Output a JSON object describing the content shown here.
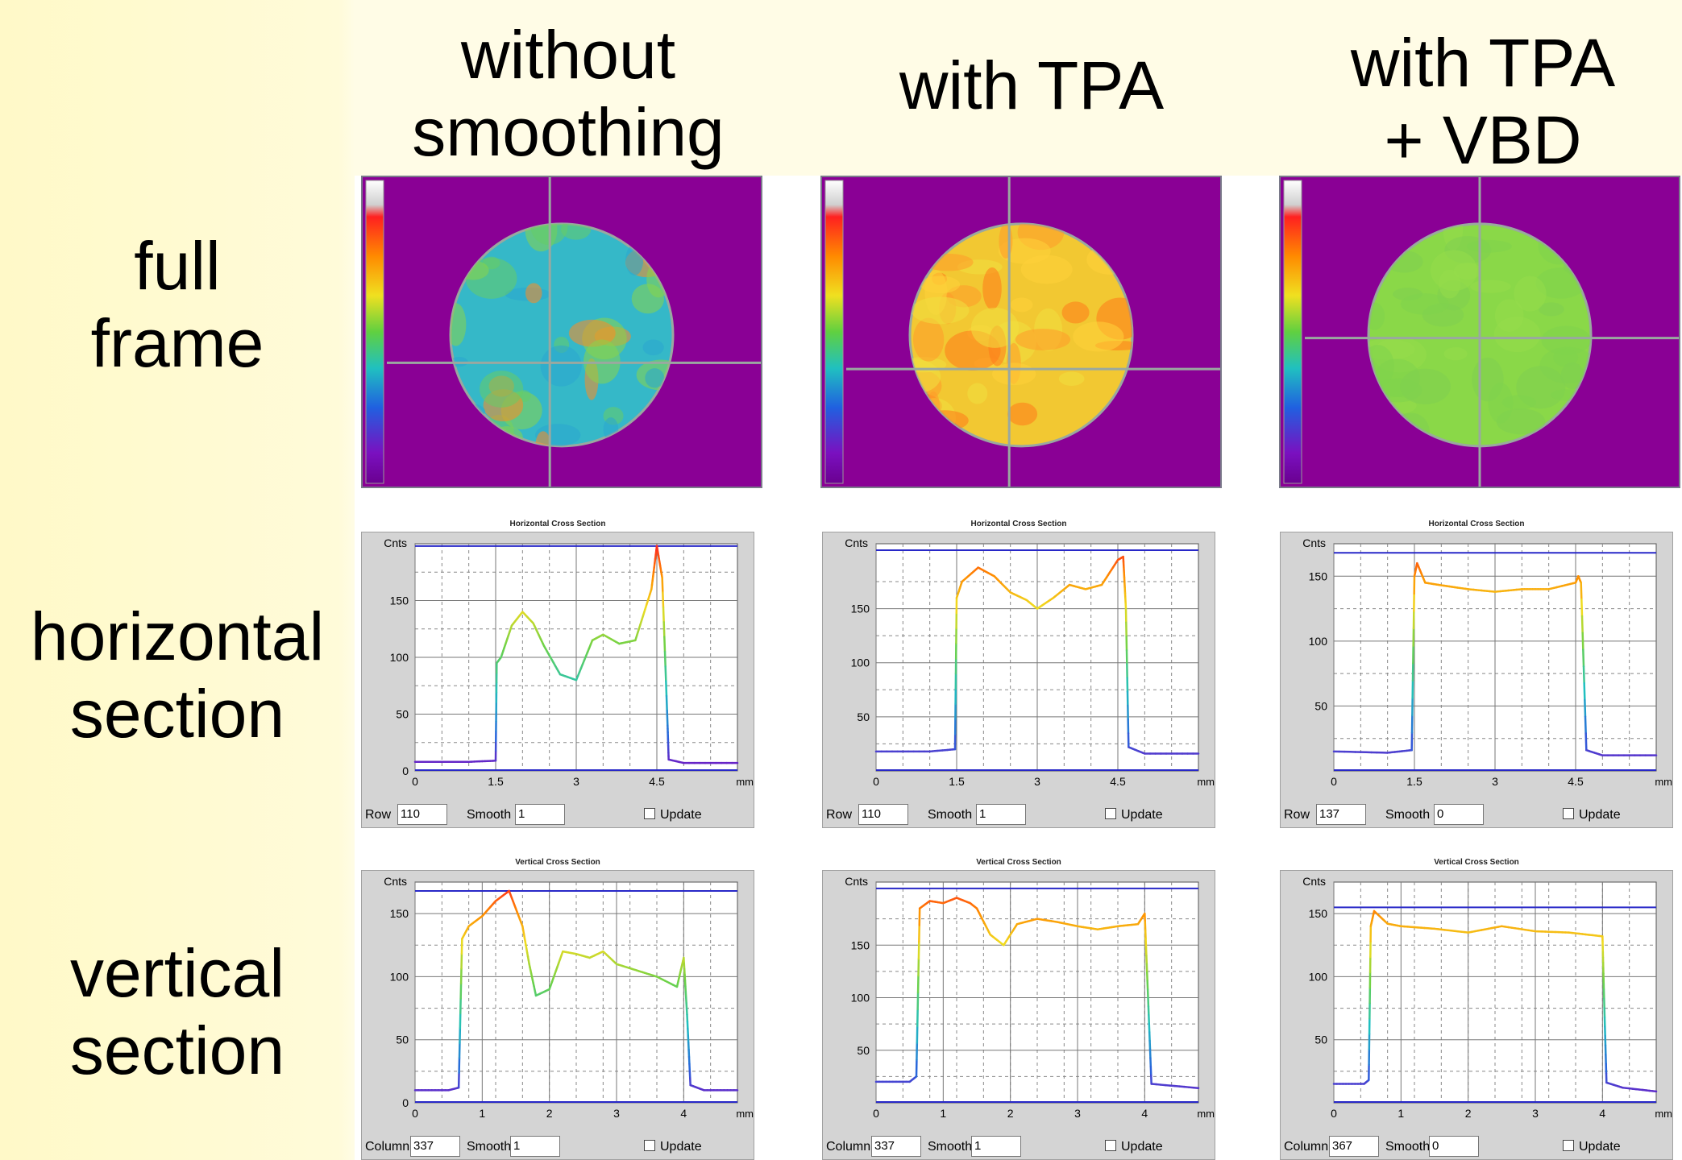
{
  "columns": [
    {
      "title": "without\nsmoothing"
    },
    {
      "title": "with TPA"
    },
    {
      "title": "with TPA\n+ VBD"
    }
  ],
  "rows": [
    {
      "title": "full\nframe"
    },
    {
      "title": "horizontal\nsection"
    },
    {
      "title": "vertical\nsection"
    }
  ],
  "frames": [
    {
      "disc_color": "#35b8c8",
      "patch_colors": [
        "#66cc66",
        "#88d44a",
        "#2aa6d0",
        "#ff8a20"
      ],
      "crosshair": [
        0.47,
        0.6
      ]
    },
    {
      "disc_color": "#f2c832",
      "patch_colors": [
        "#ff9a2a",
        "#ffd23a",
        "#f0e040",
        "#ff7a1a"
      ],
      "crosshair": [
        0.47,
        0.62
      ]
    },
    {
      "disc_color": "#8ad848",
      "patch_colors": [
        "#7fd44c",
        "#96dc4a",
        "#80d050"
      ],
      "crosshair": [
        0.5,
        0.52
      ]
    }
  ],
  "chart_data": [
    {
      "type": "line",
      "title": "Horizontal Cross Section",
      "ylabel": "Cnts",
      "xlabel": "mm",
      "xticks": [
        "0",
        "1.5",
        "3",
        "4.5"
      ],
      "xlim": [
        0,
        6
      ],
      "ylim": [
        0,
        200
      ],
      "yticks": [
        0,
        50,
        100,
        150
      ],
      "ref_line": 198,
      "x": [
        0,
        1.0,
        1.5,
        1.52,
        1.6,
        1.8,
        2.0,
        2.2,
        2.4,
        2.7,
        3.0,
        3.3,
        3.5,
        3.8,
        4.1,
        4.4,
        4.5,
        4.6,
        4.7,
        4.72,
        5.0,
        6.0
      ],
      "y": [
        8,
        8,
        9,
        95,
        100,
        128,
        140,
        130,
        110,
        85,
        80,
        115,
        120,
        112,
        115,
        160,
        198,
        170,
        40,
        10,
        7,
        7
      ],
      "controls": {
        "row_label": "Row",
        "row_value": "110",
        "smooth_label": "Smooth",
        "smooth_value": "1",
        "update_label": "Update"
      }
    },
    {
      "type": "line",
      "title": "Horizontal Cross Section",
      "ylabel": "Cnts",
      "xlabel": "mm",
      "xticks": [
        "0",
        "1.5",
        "3",
        "4.5"
      ],
      "xlim": [
        0,
        6
      ],
      "ylim": [
        0,
        210
      ],
      "yticks": [
        50,
        100,
        150
      ],
      "ref_line": 204,
      "x": [
        0,
        1.0,
        1.47,
        1.5,
        1.6,
        1.9,
        2.2,
        2.5,
        2.8,
        3.0,
        3.3,
        3.6,
        3.9,
        4.2,
        4.5,
        4.6,
        4.65,
        4.7,
        5.0,
        6.0
      ],
      "y": [
        18,
        18,
        20,
        160,
        175,
        188,
        180,
        165,
        158,
        150,
        160,
        172,
        168,
        172,
        195,
        198,
        150,
        22,
        16,
        16
      ],
      "controls": {
        "row_label": "Row",
        "row_value": "110",
        "smooth_label": "Smooth",
        "smooth_value": "1",
        "update_label": "Update"
      }
    },
    {
      "type": "line",
      "title": "Horizontal Cross Section",
      "ylabel": "Cnts",
      "xlabel": "mm",
      "xticks": [
        "0",
        "1.5",
        "3",
        "4.5"
      ],
      "xlim": [
        0,
        6
      ],
      "ylim": [
        0,
        175
      ],
      "yticks": [
        50,
        100,
        150
      ],
      "ref_line": 168,
      "x": [
        0,
        1.0,
        1.45,
        1.5,
        1.55,
        1.7,
        2.0,
        2.5,
        3.0,
        3.5,
        4.0,
        4.5,
        4.55,
        4.6,
        4.7,
        5.0,
        6.0
      ],
      "y": [
        15,
        14,
        16,
        150,
        160,
        145,
        143,
        140,
        138,
        140,
        140,
        145,
        150,
        145,
        16,
        12,
        12
      ],
      "controls": {
        "row_label": "Row",
        "row_value": "137",
        "smooth_label": "Smooth",
        "smooth_value": "0",
        "update_label": "Update"
      }
    },
    {
      "type": "line",
      "title": "Vertical Cross Section",
      "ylabel": "Cnts",
      "xlabel": "mm",
      "xticks": [
        "0",
        "1",
        "2",
        "3",
        "4"
      ],
      "xlim": [
        0,
        4.8
      ],
      "ylim": [
        0,
        175
      ],
      "yticks": [
        0,
        50,
        100,
        150
      ],
      "ref_line": 168,
      "x": [
        0,
        0.5,
        0.65,
        0.7,
        0.8,
        1.0,
        1.2,
        1.4,
        1.6,
        1.7,
        1.8,
        2.0,
        2.2,
        2.4,
        2.6,
        2.8,
        3.0,
        3.3,
        3.6,
        3.9,
        4.0,
        4.05,
        4.1,
        4.3,
        4.8
      ],
      "y": [
        10,
        10,
        12,
        130,
        140,
        148,
        160,
        168,
        140,
        110,
        85,
        90,
        120,
        118,
        115,
        120,
        110,
        105,
        100,
        92,
        115,
        70,
        14,
        10,
        10
      ],
      "controls": {
        "row_label": "Column",
        "row_value": "337",
        "smooth_label": "Smooth",
        "smooth_value": "1",
        "update_label": "Update"
      }
    },
    {
      "type": "line",
      "title": "Vertical Cross Section",
      "ylabel": "Cnts",
      "xlabel": "mm",
      "xticks": [
        "0",
        "1",
        "2",
        "3",
        "4"
      ],
      "xlim": [
        0,
        4.8
      ],
      "ylim": [
        0,
        210
      ],
      "yticks": [
        50,
        100,
        150
      ],
      "ref_line": 204,
      "x": [
        0,
        0.5,
        0.6,
        0.65,
        0.8,
        1.0,
        1.2,
        1.4,
        1.5,
        1.7,
        1.9,
        2.1,
        2.4,
        2.7,
        3.0,
        3.3,
        3.6,
        3.9,
        4.0,
        4.05,
        4.1,
        4.8
      ],
      "y": [
        20,
        20,
        25,
        185,
        192,
        190,
        195,
        190,
        185,
        160,
        150,
        170,
        175,
        172,
        168,
        165,
        168,
        170,
        180,
        100,
        18,
        14
      ],
      "controls": {
        "row_label": "Column",
        "row_value": "337",
        "smooth_label": "Smooth",
        "smooth_value": "1",
        "update_label": "Update"
      }
    },
    {
      "type": "line",
      "title": "Vertical Cross Section",
      "ylabel": "Cnts",
      "xlabel": "mm",
      "xticks": [
        "0",
        "1",
        "2",
        "3",
        "4"
      ],
      "xlim": [
        0,
        4.8
      ],
      "ylim": [
        0,
        175
      ],
      "yticks": [
        50,
        100,
        150
      ],
      "ref_line": 155,
      "x": [
        0,
        0.45,
        0.52,
        0.55,
        0.6,
        0.8,
        1.0,
        1.5,
        2.0,
        2.5,
        3.0,
        3.5,
        4.0,
        4.02,
        4.06,
        4.3,
        4.8
      ],
      "y": [
        15,
        15,
        18,
        140,
        152,
        142,
        140,
        138,
        135,
        140,
        136,
        135,
        132,
        90,
        16,
        12,
        9
      ],
      "controls": {
        "row_label": "Column",
        "row_value": "367",
        "smooth_label": "Smooth",
        "smooth_value": "0",
        "update_label": "Update"
      }
    }
  ]
}
